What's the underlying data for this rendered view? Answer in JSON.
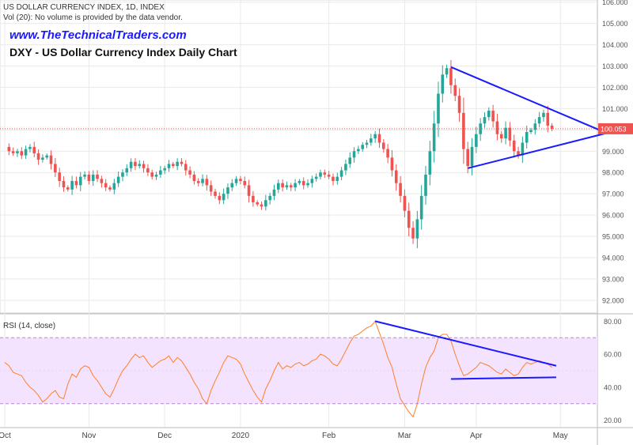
{
  "header": {
    "symbol_line": "US DOLLAR CURRENCY INDEX, 1D, INDEX",
    "volume_note": "Vol (20): No volume is provided by the data vendor.",
    "website": "www.TheTechnicalTraders.com",
    "title": "DXY - US Dollar Currency Index Daily Chart"
  },
  "colors": {
    "up": "#26a69a",
    "down": "#ef5350",
    "trendline": "#1a1aff",
    "rsi_line": "#ff7f27",
    "rsi_band": "#f3e3ff",
    "price_line": "#ef5350",
    "grid": "#e9e9e9"
  },
  "chart_data": [
    {
      "type": "candlestick",
      "title": "DXY - US Dollar Currency Index Daily Chart",
      "ylim": [
        91.4,
        106.1
      ],
      "y_ticks": [
        "92.000",
        "93.000",
        "94.000",
        "95.000",
        "96.000",
        "97.000",
        "98.000",
        "99.000",
        "100.000",
        "101.000",
        "102.000",
        "103.000",
        "104.000",
        "105.000",
        "106.000"
      ],
      "x_tick_labels": [
        "Oct",
        "Nov",
        "Dec",
        "2020",
        "Feb",
        "Mar",
        "Apr",
        "May"
      ],
      "last_price": 100.053,
      "last_price_label": "100.053",
      "grid": true,
      "closes": [
        99.2,
        99.0,
        98.9,
        99.0,
        98.8,
        99.1,
        99.2,
        98.9,
        98.6,
        98.7,
        98.8,
        98.4,
        98.0,
        97.6,
        97.3,
        97.2,
        97.6,
        97.4,
        97.8,
        97.9,
        97.6,
        97.9,
        97.7,
        97.5,
        97.3,
        97.2,
        97.5,
        97.8,
        98.0,
        98.2,
        98.5,
        98.3,
        98.4,
        98.2,
        98.0,
        97.8,
        97.9,
        98.1,
        98.2,
        98.4,
        98.3,
        98.5,
        98.4,
        98.1,
        97.9,
        97.6,
        97.5,
        97.7,
        97.4,
        97.1,
        96.9,
        96.7,
        97.0,
        97.3,
        97.5,
        97.7,
        97.6,
        97.4,
        96.9,
        96.6,
        96.5,
        96.4,
        96.7,
        96.9,
        97.2,
        97.5,
        97.3,
        97.4,
        97.3,
        97.5,
        97.6,
        97.4,
        97.5,
        97.7,
        97.8,
        98.0,
        97.9,
        97.8,
        97.6,
        97.8,
        98.1,
        98.4,
        98.7,
        99.0,
        99.1,
        99.3,
        99.4,
        99.6,
        99.8,
        99.4,
        99.1,
        98.7,
        98.1,
        97.5,
        96.9,
        96.2,
        95.4,
        94.9,
        95.8,
        96.9,
        97.9,
        99.0,
        100.3,
        101.7,
        102.6,
        102.9,
        102.1,
        101.6,
        100.8,
        99.1,
        98.3,
        99.2,
        99.8,
        100.3,
        100.6,
        100.9,
        100.4,
        99.8,
        99.6,
        100.1,
        99.5,
        99.0,
        98.8,
        99.4,
        99.9,
        100.0,
        100.3,
        100.6,
        100.8,
        100.2,
        100.05
      ]
    },
    {
      "type": "line",
      "title": "RSI (14, close)",
      "ylim": [
        16,
        84
      ],
      "y_ticks": [
        "20.00",
        "40.00",
        "60.00",
        "80.00"
      ],
      "band": [
        30,
        70
      ],
      "values": [
        55,
        53,
        49,
        48,
        47,
        43,
        40,
        38,
        35,
        31,
        33,
        36,
        38,
        34,
        33,
        42,
        48,
        46,
        51,
        53,
        52,
        47,
        44,
        40,
        36,
        34,
        39,
        45,
        50,
        53,
        57,
        60,
        58,
        59,
        55,
        52,
        54,
        56,
        57,
        59,
        55,
        58,
        56,
        52,
        48,
        43,
        39,
        33,
        30,
        38,
        44,
        49,
        55,
        59,
        58,
        57,
        54,
        48,
        43,
        38,
        34,
        31,
        39,
        44,
        50,
        55,
        51,
        53,
        52,
        54,
        55,
        53,
        54,
        56,
        57,
        60,
        59,
        57,
        54,
        53,
        57,
        62,
        67,
        71,
        72,
        74,
        76,
        77,
        80,
        73,
        66,
        58,
        52,
        42,
        33,
        29,
        25,
        22,
        30,
        42,
        52,
        58,
        62,
        70,
        72,
        72,
        68,
        60,
        53,
        47,
        48,
        50,
        52,
        55,
        54,
        53,
        51,
        49,
        48,
        51,
        49,
        47,
        48,
        52,
        55,
        54,
        55,
        56,
        55,
        54,
        52
      ]
    }
  ],
  "drawings": {
    "triangle_upper_start": {
      "bar": 106,
      "price": 102.95
    },
    "triangle_apex": {
      "bar": 143,
      "price": 99.85
    },
    "triangle_lower_start": {
      "bar": 110,
      "price": 98.2
    },
    "rsi_upper_start": {
      "bar": 88,
      "value": 80
    },
    "rsi_upper_end": {
      "bar": 131,
      "value": 53
    },
    "rsi_lower_start": {
      "bar": 106,
      "value": 45
    },
    "rsi_lower_end": {
      "bar": 131,
      "value": 46
    }
  },
  "rsi_label": "RSI (14, close)"
}
